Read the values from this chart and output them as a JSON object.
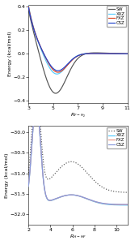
{
  "top": {
    "xlabel": "$R_{F-H_2}$",
    "ylabel": "Energy (kcal/mol)",
    "xlim": [
      3,
      11
    ],
    "ylim": [
      -0.42,
      0.42
    ],
    "xticks": [
      3,
      5,
      7,
      9,
      11
    ],
    "yticks": [
      -0.4,
      -0.2,
      0.0,
      0.2,
      0.4
    ],
    "legend": [
      "SW",
      "XXZ",
      "FXZ",
      "CSZ"
    ],
    "colors": {
      "SW": "#555555",
      "XXZ": "#55ccff",
      "FXZ": "#dd4422",
      "CSZ": "#2244cc"
    },
    "linestyles": {
      "SW": "solid",
      "XXZ": "solid",
      "FXZ": "solid",
      "CSZ": "solid"
    }
  },
  "bottom": {
    "xlabel": "$R_{H-HF}$",
    "ylabel": "Energy (kcal/mol)",
    "xlim": [
      2,
      11
    ],
    "ylim": [
      -32.25,
      -29.85
    ],
    "xticks": [
      2,
      4,
      6,
      8,
      10
    ],
    "yticks": [
      -32.0,
      -31.5,
      -31.0,
      -30.5,
      -30.0
    ],
    "legend": [
      "SW",
      "XXZ",
      "FXZ",
      "CSZ"
    ],
    "colors": {
      "SW": "#555555",
      "XXZ": "#55ccff",
      "FXZ": "#ee9988",
      "CSZ": "#8899dd"
    },
    "linestyles": {
      "SW": "dotted",
      "XXZ": "solid",
      "FXZ": "solid",
      "CSZ": "solid"
    }
  }
}
